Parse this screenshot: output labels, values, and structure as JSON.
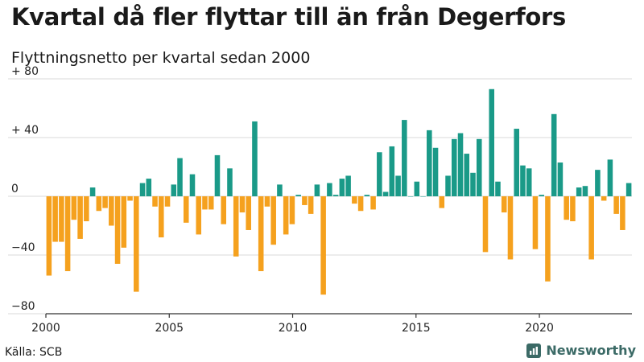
{
  "title": "Kvartal då fler flyttar till än från Degerfors",
  "subtitle": "Flyttningsnetto per kvartal sedan 2000",
  "source": "Källa: SCB",
  "brand": "Newsworthy",
  "colors": {
    "positive": "#1a9a88",
    "negative": "#f5a11e",
    "grid": "#d8d8d8",
    "brand": "#3b6a66"
  },
  "chart_data": {
    "type": "bar",
    "ylim": [
      -80,
      80
    ],
    "y_ticks": [
      {
        "value": 80,
        "label": "+ 80"
      },
      {
        "value": 40,
        "label": "+ 40"
      },
      {
        "value": 0,
        "label": "0"
      },
      {
        "value": -40,
        "label": "−40"
      },
      {
        "value": -80,
        "label": "−80"
      }
    ],
    "x_ticks": [
      {
        "value": 2000,
        "label": "2000"
      },
      {
        "value": 2005,
        "label": "2005"
      },
      {
        "value": 2010,
        "label": "2010"
      },
      {
        "value": 2015,
        "label": "2015"
      },
      {
        "value": 2020,
        "label": "2020"
      }
    ],
    "x_start": 2000,
    "x_end": 2023.75,
    "values": [
      -54,
      -31,
      -31,
      -51,
      -16,
      -29,
      -17,
      6,
      -10,
      -8,
      -20,
      -46,
      -35,
      -3,
      -65,
      9,
      12,
      -7,
      -28,
      -7,
      8,
      26,
      -18,
      15,
      -26,
      -9,
      -9,
      28,
      -19,
      19,
      -41,
      -11,
      -23,
      51,
      -51,
      -7,
      -33,
      8,
      -26,
      -19,
      1,
      -6,
      -12,
      8,
      -67,
      9,
      1,
      12,
      14,
      -5,
      -10,
      1,
      -9,
      30,
      3,
      34,
      14,
      52,
      0,
      10,
      0,
      45,
      33,
      -8,
      14,
      39,
      43,
      29,
      16,
      39,
      -38,
      73,
      10,
      -11,
      -43,
      46,
      21,
      19,
      -36,
      1,
      -58,
      56,
      23,
      -16,
      -17,
      6,
      7,
      -43,
      18,
      -3,
      25,
      -12,
      -23,
      9
    ]
  }
}
